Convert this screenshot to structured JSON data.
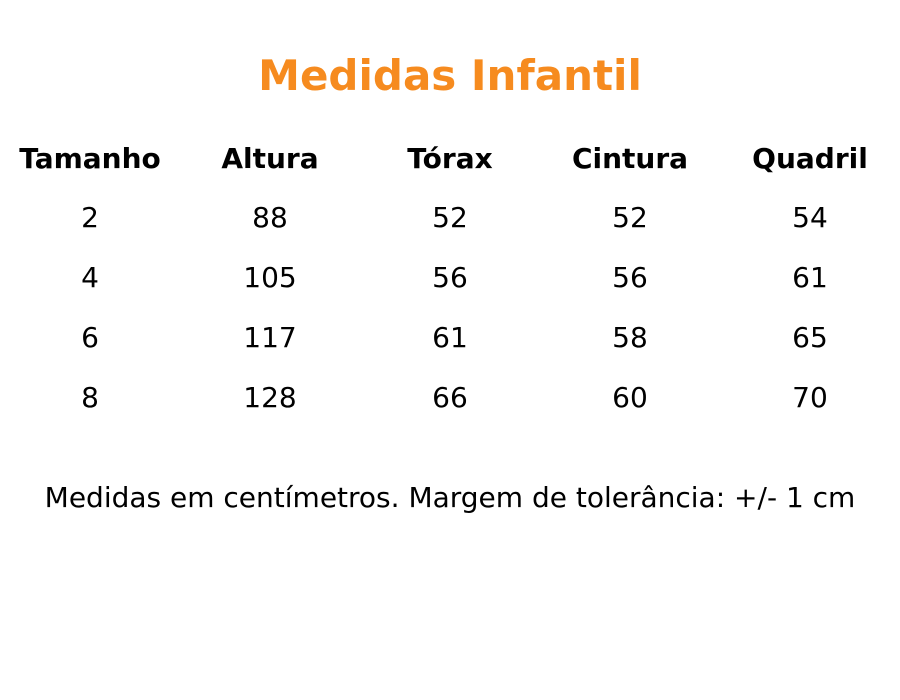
{
  "header": {
    "title": "Medidas Infantil"
  },
  "table": {
    "columns": [
      "Tamanho",
      "Altura",
      "Tórax",
      "Cintura",
      "Quadril"
    ],
    "rows": [
      [
        "2",
        "88",
        "52",
        "52",
        "54"
      ],
      [
        "4",
        "105",
        "56",
        "56",
        "61"
      ],
      [
        "6",
        "117",
        "61",
        "58",
        "65"
      ],
      [
        "8",
        "128",
        "66",
        "60",
        "70"
      ]
    ]
  },
  "footer": {
    "note": "Medidas em centímetros. Margem de tolerância: +/- 1 cm"
  }
}
